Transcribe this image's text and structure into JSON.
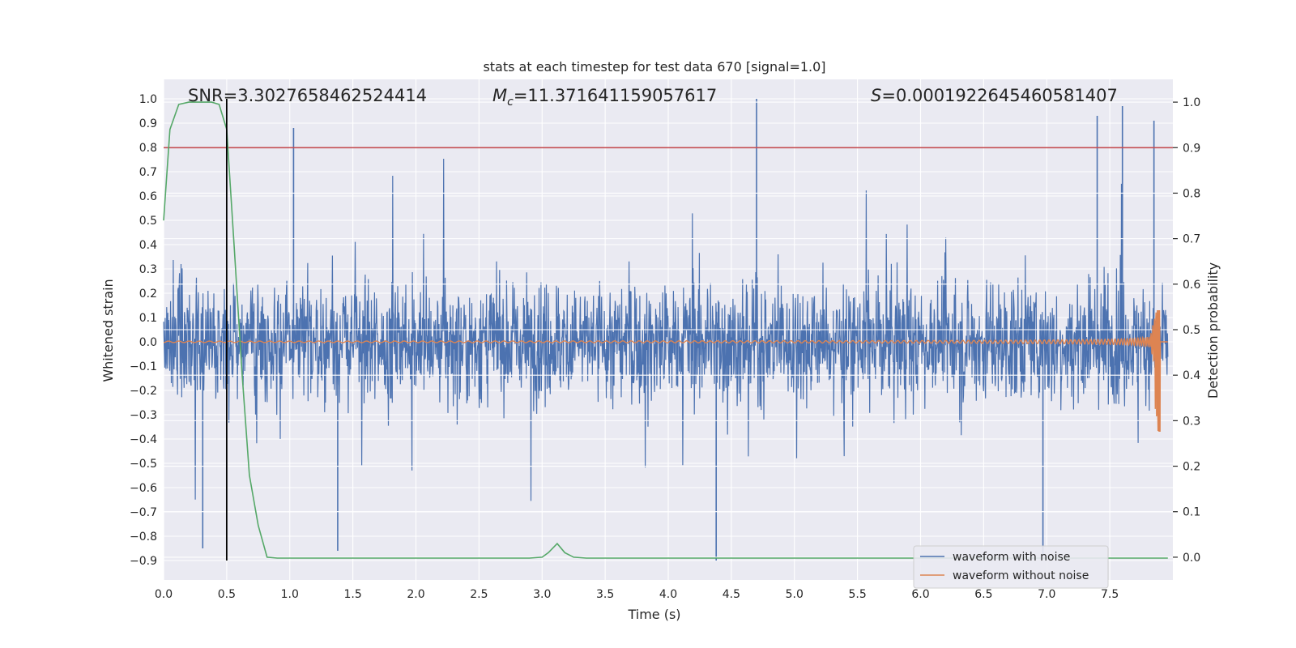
{
  "chart_data": {
    "type": "line",
    "title": "stats at each timestep for test data 670 [signal=1.0]",
    "xlabel": "Time (s)",
    "ylabel": "Whitened strain",
    "ylabel_right": "Detection probability",
    "xlim": [
      0.0,
      8.0
    ],
    "ylim": [
      -0.98,
      1.08
    ],
    "ylim_right": [
      -0.05,
      1.05
    ],
    "x_ticks": [
      0.0,
      0.5,
      1.0,
      1.5,
      2.0,
      2.5,
      3.0,
      3.5,
      4.0,
      4.5,
      5.0,
      5.5,
      6.0,
      6.5,
      7.0,
      7.5
    ],
    "x_tick_labels": [
      "0.0",
      "0.5",
      "1.0",
      "1.5",
      "2.0",
      "2.5",
      "3.0",
      "3.5",
      "4.0",
      "4.5",
      "5.0",
      "5.5",
      "6.0",
      "6.5",
      "7.0",
      "7.5"
    ],
    "y_ticks": [
      1.0,
      0.9,
      0.8,
      0.7,
      0.6,
      0.5,
      0.4,
      0.3,
      0.2,
      0.1,
      0.0,
      -0.1,
      -0.2,
      -0.3,
      -0.4,
      -0.5,
      -0.6,
      -0.7,
      -0.8,
      -0.9
    ],
    "y_tick_labels": [
      "1.0",
      "0.9",
      "0.8",
      "0.7",
      "0.6",
      "0.5",
      "0.4",
      "0.3",
      "0.2",
      "0.1",
      "0.0",
      "−0.1",
      "−0.2",
      "−0.3",
      "−0.4",
      "−0.5",
      "−0.6",
      "−0.7",
      "−0.8",
      "−0.9"
    ],
    "y_right_ticks": [
      1.0,
      0.9,
      0.8,
      0.7,
      0.6,
      0.5,
      0.4,
      0.3,
      0.2,
      0.1,
      0.0
    ],
    "y_right_tick_labels": [
      "1.0",
      "0.9",
      "0.8",
      "0.7",
      "0.6",
      "0.5",
      "0.4",
      "0.3",
      "0.2",
      "0.1",
      "0.0"
    ],
    "annotations": {
      "snr": "SNR=3.3027658462524414",
      "mc_prefix": "M",
      "mc_sub": "c",
      "mc_value": "=11.371641159057617",
      "s_prefix": "S",
      "s_value": "=0.0001922645460581407"
    },
    "threshold_right": 0.9,
    "marker_x": 0.5,
    "end_x": 7.96,
    "series": [
      {
        "name": "waveform with noise",
        "color": "#4c72b0",
        "description": "whitened noisy strain, roughly ±0.45 envelope",
        "notable_spikes": [
          {
            "x": 1.03,
            "y": 0.88
          },
          {
            "x": 4.7,
            "y": 1.0
          },
          {
            "x": 7.4,
            "y": 0.93
          },
          {
            "x": 7.6,
            "y": 0.97
          },
          {
            "x": 7.85,
            "y": 0.91
          },
          {
            "x": 4.38,
            "y": -0.9
          },
          {
            "x": 6.97,
            "y": -0.88
          },
          {
            "x": 0.31,
            "y": -0.85
          },
          {
            "x": 1.38,
            "y": -0.86
          }
        ]
      },
      {
        "name": "waveform without noise",
        "color": "#dd8452",
        "description": "chirp signal ending near 7.9 s, peak about 0.13 / -0.37"
      },
      {
        "name": "detection probability",
        "color": "#55a868",
        "axis": "right",
        "x": [
          0.0,
          0.05,
          0.12,
          0.2,
          0.3,
          0.38,
          0.44,
          0.5,
          0.56,
          0.62,
          0.68,
          0.75,
          0.82,
          0.9,
          1.5,
          2.0,
          2.5,
          2.9,
          3.0,
          3.05,
          3.12,
          3.18,
          3.25,
          3.35,
          4.0,
          5.0,
          6.0,
          7.0,
          7.96
        ],
        "values": [
          0.74,
          0.94,
          0.995,
          1.0,
          1.0,
          1.0,
          0.995,
          0.94,
          0.68,
          0.41,
          0.18,
          0.07,
          0.0,
          -0.002,
          -0.002,
          -0.002,
          -0.002,
          -0.002,
          0.0,
          0.01,
          0.03,
          0.01,
          0.0,
          -0.002,
          -0.002,
          -0.002,
          -0.002,
          -0.002,
          -0.002
        ]
      }
    ],
    "legend": {
      "placement": "lower-right",
      "entries": [
        {
          "label": "waveform with noise",
          "color": "#4c72b0"
        },
        {
          "label": "waveform without noise",
          "color": "#dd8452"
        }
      ]
    },
    "colors": {
      "background": "#eaeaf2",
      "grid": "#ffffff",
      "threshold": "#c44e52",
      "marker": "#000000"
    }
  }
}
